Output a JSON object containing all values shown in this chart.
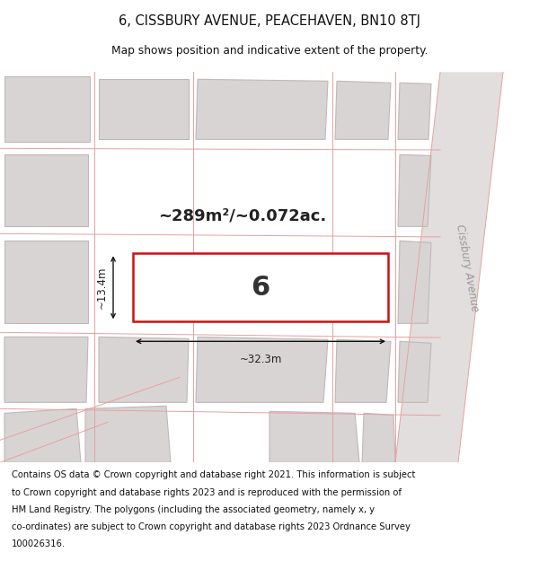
{
  "title_line1": "6, CISSBURY AVENUE, PEACEHAVEN, BN10 8TJ",
  "title_line2": "Map shows position and indicative extent of the property.",
  "footer_lines": [
    "Contains OS data © Crown copyright and database right 2021. This information is subject",
    "to Crown copyright and database rights 2023 and is reproduced with the permission of",
    "HM Land Registry. The polygons (including the associated geometry, namely x, y",
    "co-ordinates) are subject to Crown copyright and database rights 2023 Ordnance Survey",
    "100026316."
  ],
  "map_bg": "#f2f0f0",
  "building_fill": "#d8d4d4",
  "building_edge": "#c0b8b8",
  "street_fill": "#e8e4e4",
  "highlight_fill": "#ffffff",
  "highlight_edge": "#cc1111",
  "highlight_lw": 1.8,
  "area_text": "~289m²/~0.072ac.",
  "plot_number": "6",
  "dim_width": "~32.3m",
  "dim_height": "~13.4m",
  "street_label": "Cissbury Avenue",
  "road_line_color": "#e8a0a0",
  "road_line_lw": 0.7
}
